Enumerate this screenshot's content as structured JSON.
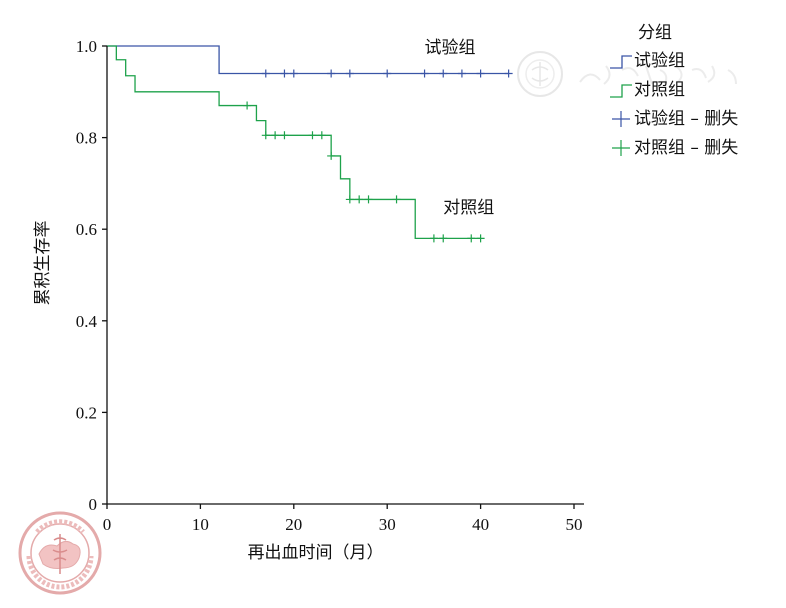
{
  "chart_data": {
    "type": "line",
    "subtype": "kaplan-meier-step",
    "xlabel": "再出血时间（月）",
    "ylabel": "累积生存率",
    "xlim": [
      0,
      50
    ],
    "ylim": [
      0,
      1.0
    ],
    "xticks": [
      0,
      10,
      20,
      30,
      40,
      50
    ],
    "yticks": [
      0,
      0.2,
      0.4,
      0.6,
      0.8,
      1.0
    ],
    "xtick_labels": [
      "0",
      "10",
      "20",
      "30",
      "40",
      "50"
    ],
    "ytick_labels": [
      "0",
      "0.2",
      "0.4",
      "0.6",
      "0.8",
      "1.0"
    ],
    "grid": false,
    "legend": {
      "title": "分组",
      "placement": "top-right",
      "entries": [
        {
          "label": "试验组",
          "kind": "line",
          "series": 0
        },
        {
          "label": "对照组",
          "kind": "line",
          "series": 1
        },
        {
          "label": "试验组 – 删失",
          "kind": "censor",
          "series": 0
        },
        {
          "label": "对照组 – 删失",
          "kind": "censor",
          "series": 1
        }
      ]
    },
    "series": [
      {
        "color": "#3a55a6",
        "label": "试验组",
        "label_at": [
          34,
          0.985
        ],
        "x": [
          0,
          12,
          43
        ],
        "y": [
          1.0,
          0.94,
          0.94
        ],
        "censored": [
          [
            17,
            0.94
          ],
          [
            19,
            0.94
          ],
          [
            20,
            0.94
          ],
          [
            24,
            0.94
          ],
          [
            26,
            0.94
          ],
          [
            30,
            0.94
          ],
          [
            34,
            0.94
          ],
          [
            36,
            0.94
          ],
          [
            38,
            0.94
          ],
          [
            40,
            0.94
          ],
          [
            43,
            0.94
          ]
        ]
      },
      {
        "color": "#1ea24b",
        "label": "对照组",
        "label_at": [
          36,
          0.635
        ],
        "x": [
          1,
          2,
          3,
          12,
          16,
          17,
          24,
          25,
          26,
          33,
          40
        ],
        "y": [
          0.97,
          0.935,
          0.9,
          0.87,
          0.837,
          0.805,
          0.76,
          0.71,
          0.665,
          0.58,
          0.58
        ],
        "censored": [
          [
            15,
            0.87
          ],
          [
            17,
            0.805
          ],
          [
            18,
            0.805
          ],
          [
            19,
            0.805
          ],
          [
            22,
            0.805
          ],
          [
            23,
            0.805
          ],
          [
            24,
            0.76
          ],
          [
            26,
            0.665
          ],
          [
            27,
            0.665
          ],
          [
            28,
            0.665
          ],
          [
            31,
            0.665
          ],
          [
            35,
            0.58
          ],
          [
            36,
            0.58
          ],
          [
            39,
            0.58
          ],
          [
            40,
            0.58
          ]
        ]
      }
    ]
  }
}
